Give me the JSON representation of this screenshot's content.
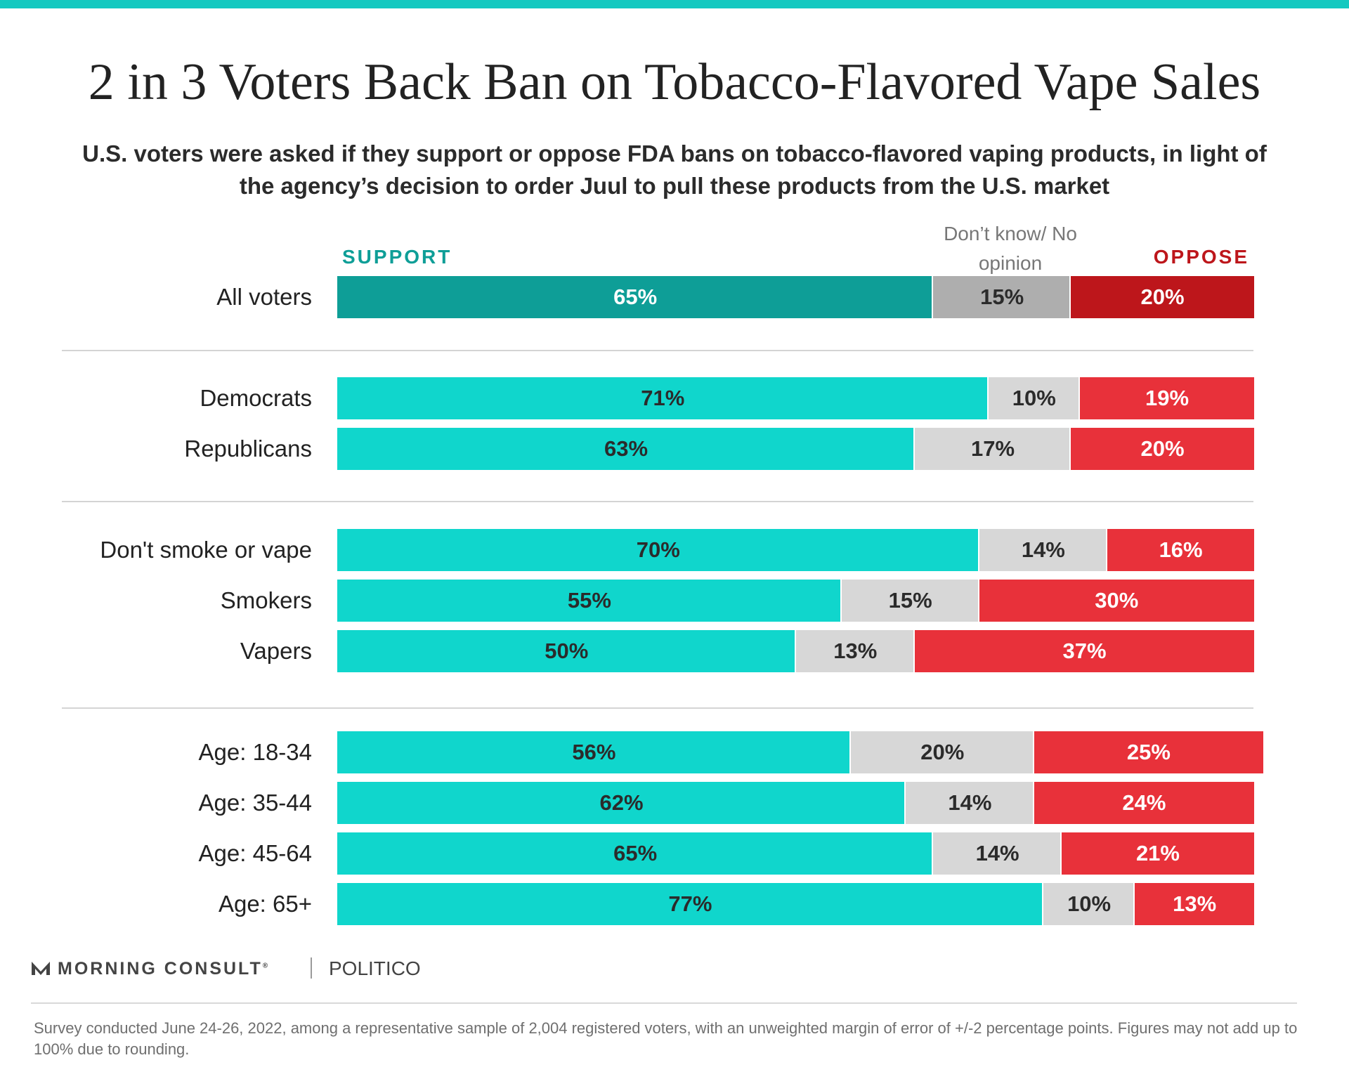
{
  "title": "2 in 3 Voters Back Ban on Tobacco-Flavored Vape Sales",
  "subtitle": "U.S. voters were asked if they support or oppose FDA bans on tobacco-flavored vaping products, in light of the agency’s decision to order Juul to pull these products from the U.S. market",
  "colors": {
    "accent": "#14C9C0",
    "support_all": "#0E9E97",
    "dk_all": "#AEAEAE",
    "oppose_all": "#BD161B",
    "support": "#10D6CC",
    "dk": "#D7D7D7",
    "oppose": "#E8313A",
    "support_text": "#0E9E97",
    "oppose_text": "#BD161B"
  },
  "chart_data": {
    "type": "bar",
    "orientation": "horizontal",
    "stacked": true,
    "legend_placement": "top",
    "grid": false,
    "xlim": [
      0,
      100
    ],
    "legend": {
      "support": "SUPPORT",
      "dont_know": "Don’t know/ No opinion",
      "oppose": "OPPOSE"
    },
    "categories": [
      "All voters",
      "Democrats",
      "Republicans",
      "Don't smoke or vape",
      "Smokers",
      "Vapers",
      "Age: 18-34",
      "Age: 35-44",
      "Age: 45-64",
      "Age: 65+"
    ],
    "groups": [
      [
        0
      ],
      [
        1,
        2
      ],
      [
        3,
        4,
        5
      ],
      [
        6,
        7,
        8,
        9
      ]
    ],
    "series": [
      {
        "name": "SUPPORT",
        "values": [
          65,
          71,
          63,
          70,
          55,
          50,
          56,
          62,
          65,
          77
        ],
        "labels": [
          "65%",
          "71%",
          "63%",
          "70%",
          "55%",
          "50%",
          "56%",
          "62%",
          "65%",
          "77%"
        ]
      },
      {
        "name": "Don’t know/ No opinion",
        "values": [
          15,
          10,
          17,
          14,
          15,
          13,
          20,
          14,
          14,
          10
        ],
        "labels": [
          "15%",
          "10%",
          "17%",
          "14%",
          "15%",
          "13%",
          "20%",
          "14%",
          "14%",
          "10%"
        ]
      },
      {
        "name": "OPPOSE",
        "values": [
          20,
          19,
          20,
          16,
          30,
          37,
          25,
          24,
          21,
          13
        ],
        "labels": [
          "20%",
          "19%",
          "20%",
          "16%",
          "30%",
          "37%",
          "25%",
          "24%",
          "21%",
          "13%"
        ]
      }
    ]
  },
  "branding": {
    "logo_icon": "morning-consult-m-icon",
    "name": "MORNING CONSULT",
    "trademark": "®",
    "partner": "POLITICO"
  },
  "footnote": "Survey conducted June 24-26, 2022, among a representative sample of 2,004 registered voters, with an unweighted margin of error of +/-2 percentage points. Figures may not add up to 100% due to rounding."
}
